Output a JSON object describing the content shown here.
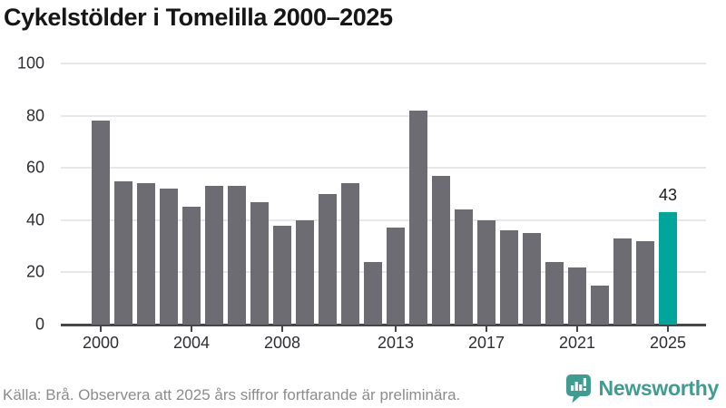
{
  "title": "Cykelstölder i Tomelilla 2000–2025",
  "chart_data": {
    "type": "bar",
    "title": "Cykelstölder i Tomelilla 2000–2025",
    "categories": [
      2000,
      2001,
      2002,
      2003,
      2004,
      2005,
      2006,
      2007,
      2008,
      2009,
      2010,
      2011,
      2012,
      2013,
      2014,
      2015,
      2016,
      2017,
      2018,
      2019,
      2020,
      2021,
      2022,
      2023,
      2024,
      2025
    ],
    "values": [
      78,
      55,
      54,
      52,
      45,
      53,
      53,
      47,
      38,
      40,
      50,
      54,
      24,
      37,
      82,
      57,
      44,
      40,
      36,
      35,
      24,
      22,
      15,
      33,
      32,
      43
    ],
    "xlabel": "",
    "ylabel": "",
    "ylim": [
      0,
      100
    ],
    "yticks": [
      0,
      20,
      40,
      60,
      80,
      100
    ],
    "xticks": [
      2000,
      2004,
      2008,
      2013,
      2017,
      2021,
      2025
    ],
    "grid": true,
    "legend": "none",
    "bar_color": "#6d6c72",
    "highlight_index": 25,
    "highlight_color": "#00a69c",
    "highlight_label": "43"
  },
  "footer": {
    "source_text": "Källa: Brå. Observera att 2025 års siffror fortfarande är preliminära.",
    "brand": "Newsworthy",
    "brand_color": "#3f9c91",
    "brand_icon": "bar-chart-speech-bubble"
  }
}
